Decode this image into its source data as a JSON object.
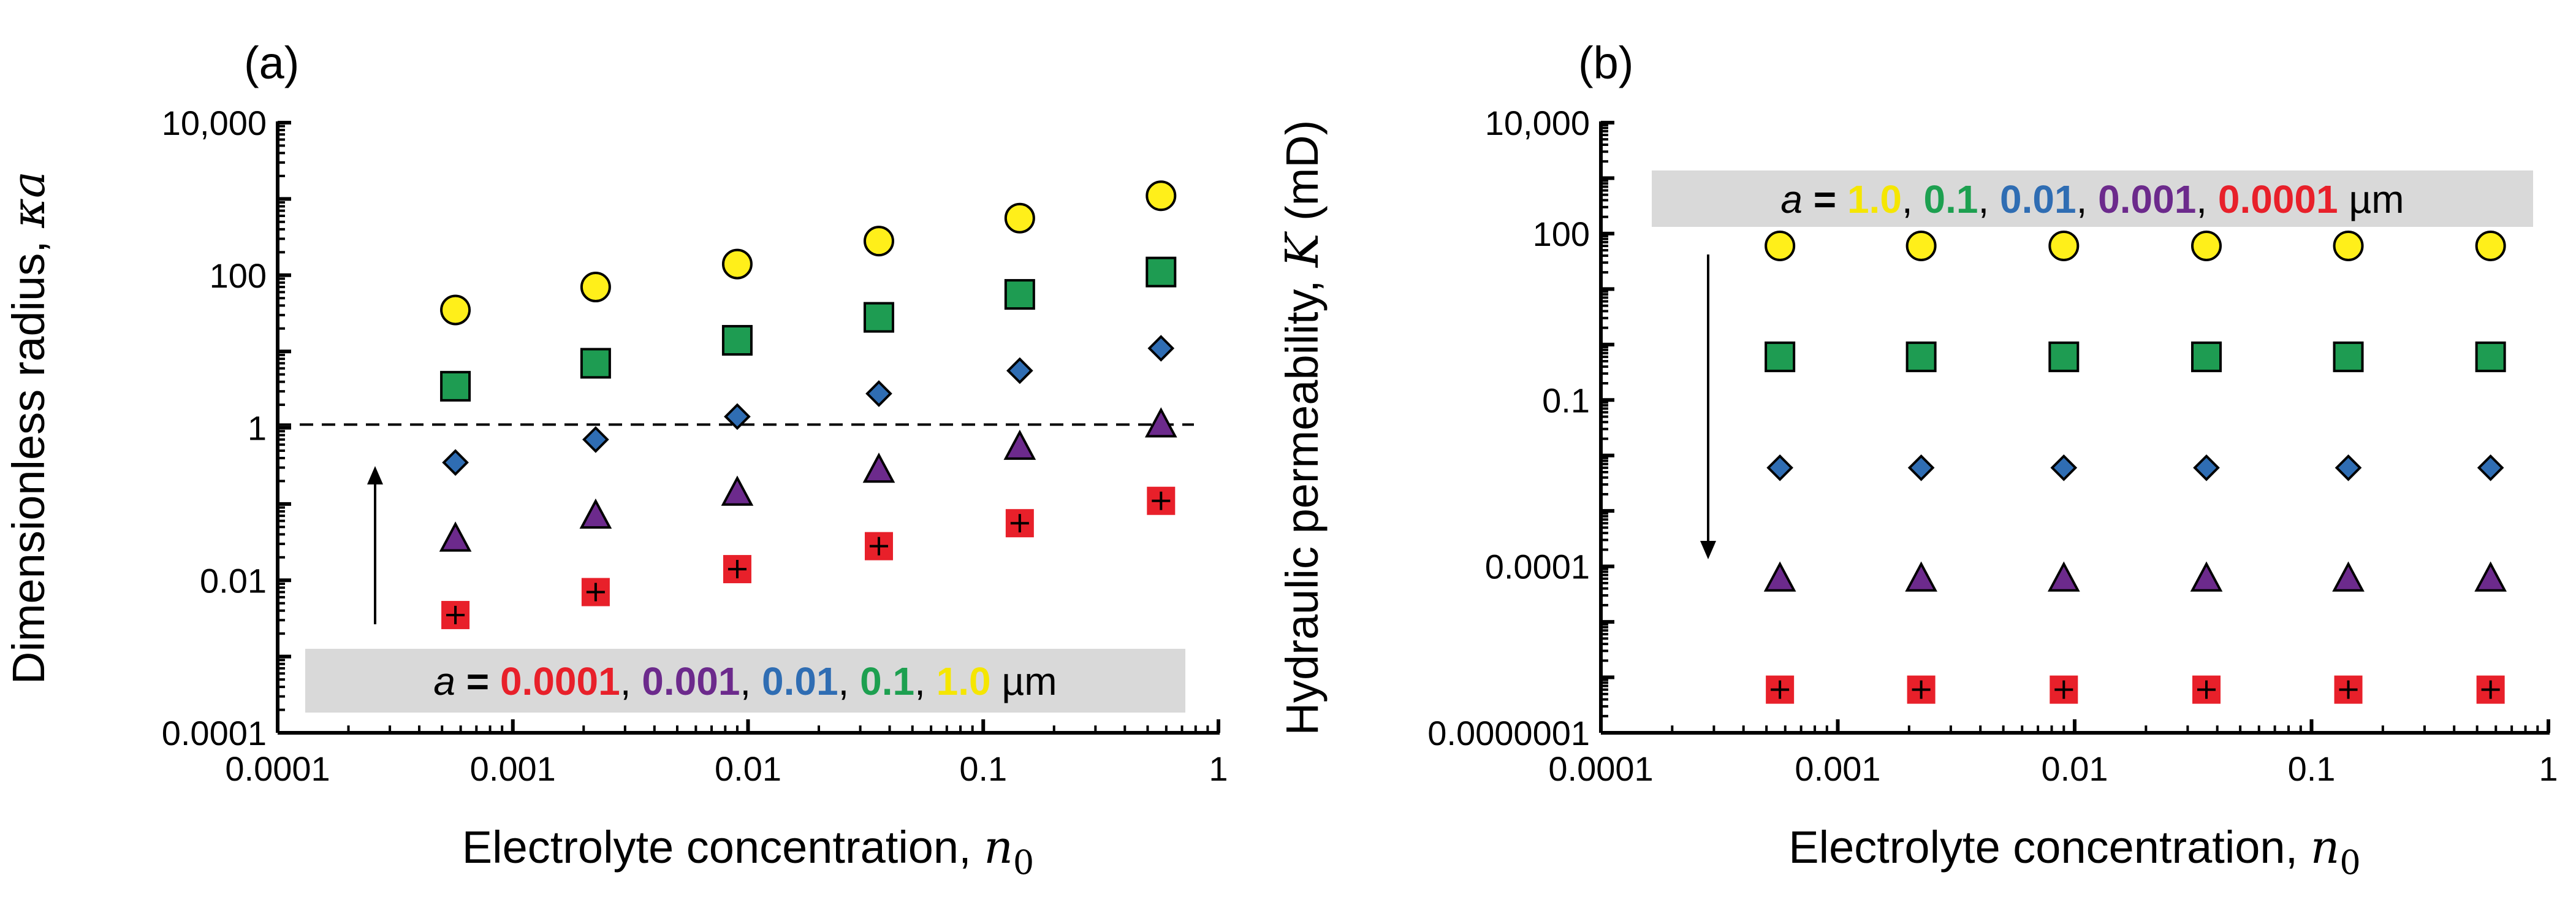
{
  "chart_data": [
    {
      "type": "scatter",
      "panel_label": "(a)",
      "xlabel": "Electrolyte concentration, ",
      "xlabel_math": "n",
      "xlabel_sub": "0",
      "ylabel": "Dimensionless radius, ",
      "ylabel_math": "κa",
      "x_scale": "log",
      "y_scale": "log",
      "xlim": [
        0.0001,
        1
      ],
      "ylim": [
        0.0001,
        10000
      ],
      "x_ticks": [
        0.0001,
        0.001,
        0.01,
        0.1,
        1
      ],
      "x_tick_labels": [
        "0.0001",
        "0.001",
        "0.01",
        "0.1",
        "1"
      ],
      "y_ticks": [
        0.0001,
        0.01,
        1,
        100,
        10000
      ],
      "y_tick_labels": [
        "0.0001",
        "0.01",
        "1",
        "100",
        "10,000"
      ],
      "grid": false,
      "reference_line": {
        "y": 1.1,
        "style": "dashed"
      },
      "arrow": {
        "direction": "up"
      },
      "legend": {
        "placement": "bottom-right",
        "prefix": "a",
        "equals": " = ",
        "separator": ", ",
        "unit": " µm",
        "entries": [
          "0.0001",
          "0.001",
          "0.01",
          "0.1",
          "1.0"
        ],
        "colors": [
          "#e8202a",
          "#6c2a8c",
          "#2f6db3",
          "#1da050",
          "#f5e600"
        ]
      },
      "x": [
        0.00057,
        0.00225,
        0.009,
        0.036,
        0.143,
        0.57
      ],
      "series": [
        {
          "a": "1.0",
          "marker": "circle",
          "color": "#ffef1a",
          "values": [
            35,
            70,
            140,
            280,
            560,
            1100
          ]
        },
        {
          "a": "0.1",
          "marker": "square",
          "color": "#1e9c52",
          "values": [
            3.5,
            7,
            14,
            28,
            56,
            110
          ]
        },
        {
          "a": "0.01",
          "marker": "diamond",
          "color": "#2f6db3",
          "values": [
            0.35,
            0.7,
            1.4,
            2.8,
            5.6,
            11
          ]
        },
        {
          "a": "0.001",
          "marker": "triangle",
          "color": "#6c2a8c",
          "values": [
            0.035,
            0.07,
            0.14,
            0.28,
            0.56,
            1.1
          ]
        },
        {
          "a": "0.0001",
          "marker": "square-cross",
          "color": "#e8202a",
          "values": [
            0.0035,
            0.007,
            0.014,
            0.028,
            0.056,
            0.11
          ]
        }
      ]
    },
    {
      "type": "scatter",
      "panel_label": "(b)",
      "xlabel": "Electrolyte concentration, ",
      "xlabel_math": "n",
      "xlabel_sub": "0",
      "ylabel": "Hydraulic permeability, ",
      "ylabel_math": "K",
      "ylabel_unit": " (mD)",
      "x_scale": "log",
      "y_scale": "log",
      "xlim": [
        0.0001,
        1
      ],
      "ylim": [
        1e-07,
        10000
      ],
      "x_ticks": [
        0.0001,
        0.001,
        0.01,
        0.1,
        1
      ],
      "x_tick_labels": [
        "0.0001",
        "0.001",
        "0.01",
        "0.1",
        "1"
      ],
      "y_ticks": [
        1e-07,
        0.0001,
        0.1,
        100,
        10000
      ],
      "y_tick_labels": [
        "0.0000001",
        "0.0001",
        "0.1",
        "100",
        "10,000"
      ],
      "grid": false,
      "arrow": {
        "direction": "down"
      },
      "legend": {
        "placement": "top-right",
        "prefix": "a",
        "equals": " = ",
        "separator": ", ",
        "unit": " µm",
        "entries": [
          "1.0",
          "0.1",
          "0.01",
          "0.001",
          "0.0001"
        ],
        "colors": [
          "#f5e600",
          "#1da050",
          "#2f6db3",
          "#6c2a8c",
          "#e8202a"
        ]
      },
      "x": [
        0.00057,
        0.00225,
        0.009,
        0.036,
        0.143,
        0.57
      ],
      "series": [
        {
          "a": "1.0",
          "marker": "circle",
          "color": "#ffef1a",
          "values": [
            60,
            60,
            60,
            60,
            60,
            60
          ]
        },
        {
          "a": "0.1",
          "marker": "square",
          "color": "#1e9c52",
          "values": [
            0.6,
            0.6,
            0.6,
            0.6,
            0.6,
            0.6
          ]
        },
        {
          "a": "0.01",
          "marker": "diamond",
          "color": "#2f6db3",
          "values": [
            0.006,
            0.006,
            0.006,
            0.006,
            0.006,
            0.006
          ]
        },
        {
          "a": "0.001",
          "marker": "triangle",
          "color": "#6c2a8c",
          "values": [
            6e-05,
            6e-05,
            6e-05,
            6e-05,
            6e-05,
            6e-05
          ]
        },
        {
          "a": "0.0001",
          "marker": "square-cross",
          "color": "#e8202a",
          "values": [
            6e-07,
            6e-07,
            6e-07,
            6e-07,
            6e-07,
            6e-07
          ]
        }
      ]
    }
  ]
}
